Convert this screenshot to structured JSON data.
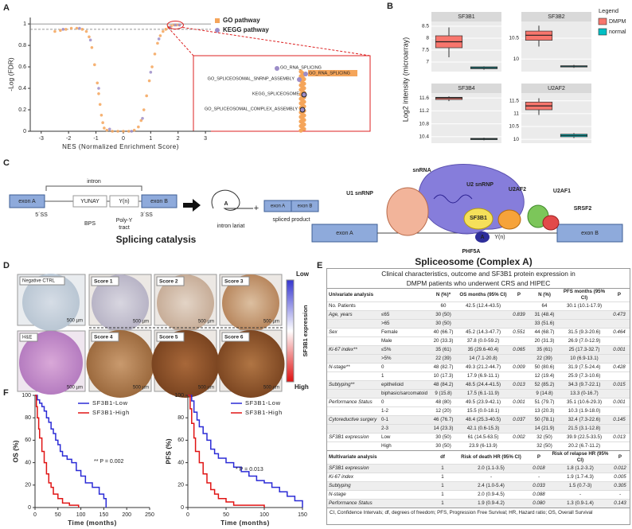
{
  "panel_labels": [
    "A",
    "B",
    "C",
    "D",
    "E",
    "F"
  ],
  "chart_data": [
    {
      "type": "scatter",
      "xlabel": "NES (Normalized Enrichment Score)",
      "ylabel": "-Log (FDR)",
      "xlim": [
        -3.4,
        3.2
      ],
      "xticks": [
        -3,
        -2,
        -1,
        0,
        1,
        2,
        3
      ],
      "ylim": [
        0,
        1.06
      ],
      "yticks": [
        0,
        0.2,
        0.4,
        0.6,
        0.8,
        1
      ],
      "reference_lines": [
        {
          "value": 1,
          "style": "solid"
        },
        {
          "value": 0.95,
          "style": "dashed"
        }
      ],
      "series": [
        {
          "name": "GO pathway",
          "color": "#f5a55a",
          "x": [
            -2.5,
            -2.3,
            -2.1,
            -1.9,
            -1.7,
            -1.5,
            -1.35,
            -1.25,
            -1.15,
            -1.05,
            -0.95,
            -0.9,
            -0.85,
            -0.8,
            -0.75,
            -0.7,
            -0.6,
            -0.4,
            -0.2,
            0,
            0.2,
            0.4,
            0.55,
            0.65,
            0.75,
            0.85,
            0.95,
            1.05,
            1.15,
            1.25,
            1.35,
            1.45,
            1.55,
            1.65,
            1.75,
            1.85,
            1.95,
            2.05
          ],
          "values": [
            0.93,
            0.94,
            0.95,
            0.96,
            0.96,
            0.95,
            0.93,
            0.88,
            0.78,
            0.62,
            0.45,
            0.35,
            0.25,
            0.15,
            0.08,
            0.03,
            0.01,
            0,
            0,
            0,
            0,
            0.01,
            0.04,
            0.1,
            0.2,
            0.33,
            0.47,
            0.6,
            0.72,
            0.82,
            0.89,
            0.93,
            0.95,
            0.97,
            0.98,
            0.99,
            0.99,
            0.99
          ]
        },
        {
          "name": "KEGG pathway",
          "color": "#9c8dc8",
          "x": [
            -2.2,
            -1.6,
            -1.2,
            -0.9,
            -0.5,
            0.3,
            0.7,
            1.0,
            1.3,
            1.7,
            1.9,
            2.05
          ],
          "values": [
            0.95,
            0.96,
            0.85,
            0.4,
            0.02,
            0,
            0.12,
            0.55,
            0.86,
            0.97,
            0.99,
            0.99
          ]
        }
      ],
      "annotations": [
        "GO_RNA_SPLICING",
        "GO_RNA_SPLICING",
        "GO_SPLICEOSOMAL_SNRNP_ASSEMBLY",
        "KEGG_SPLICEOSOME",
        "GO_SPLICEOSOMAL_COMPLEX_ASSEMBLY"
      ]
    },
    {
      "type": "box",
      "ylabel": "Log2 intensity (microarray)",
      "legend_title": "Legend",
      "series": [
        {
          "name": "DMPM",
          "color": "#f8766d"
        },
        {
          "name": "normal",
          "color": "#00bfc4"
        }
      ],
      "facets": [
        {
          "title": "SF3B1",
          "ylim": [
            6.6,
            8.7
          ],
          "yticks": [
            7.0,
            7.5,
            8.0,
            8.5
          ],
          "values": [
            {
              "low": 7.2,
              "q1": 7.6,
              "median": 7.85,
              "q3": 8.1,
              "high": 8.45
            },
            {
              "low": 6.68,
              "q1": 6.72,
              "median": 6.76,
              "q3": 6.8,
              "high": 6.82
            }
          ]
        },
        {
          "title": "SF3B2",
          "ylim": [
            9.7,
            10.9
          ],
          "yticks": [
            10.0,
            10.5
          ],
          "values": [
            {
              "low": 10.3,
              "q1": 10.45,
              "median": 10.57,
              "q3": 10.67,
              "high": 10.8
            },
            {
              "low": 9.79,
              "q1": 9.81,
              "median": 9.83,
              "q3": 9.84,
              "high": 9.86
            }
          ]
        },
        {
          "title": "SF3B4",
          "ylim": [
            10.2,
            11.75
          ],
          "yticks": [
            10.4,
            10.8,
            11.2,
            11.6
          ],
          "values": [
            {
              "low": 11.5,
              "q1": 11.55,
              "median": 11.6,
              "q3": 11.62,
              "high": 11.65
            },
            {
              "low": 10.29,
              "q1": 10.31,
              "median": 10.33,
              "q3": 10.35,
              "high": 10.37
            }
          ]
        },
        {
          "title": "U2AF2",
          "ylim": [
            9.85,
            11.8
          ],
          "yticks": [
            10.0,
            10.5,
            11.0,
            11.5
          ],
          "values": [
            {
              "low": 10.95,
              "q1": 11.15,
              "median": 11.3,
              "q3": 11.45,
              "high": 11.6
            },
            {
              "low": 10.05,
              "q1": 10.1,
              "median": 10.15,
              "q3": 10.2,
              "high": 10.24
            }
          ]
        }
      ]
    },
    {
      "type": "line",
      "step": true,
      "xlabel": "Time (months)",
      "ylabel": "OS (%)",
      "annotation": "** P = 0.002",
      "xlim": [
        0,
        250
      ],
      "xticks": [
        0,
        50,
        100,
        150,
        200,
        250
      ],
      "ylim": [
        0,
        100
      ],
      "yticks": [
        0,
        20,
        40,
        60,
        80,
        100
      ],
      "series": [
        {
          "name": "SF3B1-Low",
          "color": "#2b2bd6",
          "x": [
            0,
            5,
            10,
            15,
            20,
            25,
            30,
            35,
            40,
            45,
            50,
            55,
            60,
            70,
            80,
            90,
            100,
            110,
            125,
            140,
            150,
            155
          ],
          "values": [
            100,
            96,
            93,
            90,
            86,
            80,
            76,
            70,
            66,
            60,
            56,
            50,
            46,
            43,
            40,
            33,
            28,
            22,
            18,
            12,
            8,
            0
          ]
        },
        {
          "name": "SF3B1-High",
          "color": "#e01414",
          "x": [
            0,
            3,
            5,
            8,
            10,
            15,
            20,
            25,
            30,
            35,
            40,
            50,
            60,
            75,
            95
          ],
          "values": [
            100,
            90,
            80,
            70,
            62,
            50,
            40,
            30,
            22,
            18,
            12,
            8,
            4,
            2,
            0
          ]
        }
      ]
    },
    {
      "type": "line",
      "step": true,
      "xlabel": "Time (months)",
      "ylabel": "PFS (%)",
      "annotation": "* P = 0.013",
      "xlim": [
        0,
        150
      ],
      "xticks": [
        0,
        50,
        100,
        150
      ],
      "ylim": [
        0,
        100
      ],
      "yticks": [
        0,
        20,
        40,
        60,
        80,
        100
      ],
      "series": [
        {
          "name": "SF3B1-Low",
          "color": "#2b2bd6",
          "x": [
            0,
            5,
            8,
            12,
            15,
            20,
            25,
            30,
            35,
            40,
            50,
            60,
            70,
            80,
            90,
            100,
            110,
            120,
            130,
            140,
            150
          ],
          "values": [
            100,
            95,
            85,
            78,
            72,
            66,
            60,
            52,
            48,
            44,
            40,
            36,
            32,
            28,
            24,
            22,
            18,
            14,
            10,
            6,
            0
          ]
        },
        {
          "name": "SF3B1-High",
          "color": "#e01414",
          "x": [
            0,
            3,
            5,
            8,
            10,
            15,
            20,
            25,
            30,
            35,
            40,
            50,
            60,
            100
          ],
          "values": [
            100,
            88,
            75,
            62,
            50,
            40,
            30,
            22,
            16,
            12,
            8,
            5,
            2,
            0
          ]
        }
      ]
    }
  ],
  "splicing_diagram": {
    "title": "Splicing catalysis",
    "exon_a": "exon A",
    "intron": "intron",
    "bps_motif": "YUNAY",
    "poly_y_motif": "Y(n)",
    "exon_b": "exon B",
    "ss5": "5´SS",
    "bps": "BPS",
    "poly_y": [
      "Poly-Y",
      "tract"
    ],
    "ss3": "3´SS",
    "branch_a": "A",
    "lariat": "intron lariat",
    "plus": "+",
    "product_exon_a": "exon A",
    "product_exon_b": "exon B",
    "product": "spliced product"
  },
  "spliceosome_diagram": {
    "title": "Spliceosome (Complex A)",
    "u1": "U1 snRNP",
    "snrna": "snRNA",
    "u2": "U2 snRNP",
    "u2af2": "U2AF2",
    "u2af1": "U2AF1",
    "sf3b1": "SF3B1",
    "srsf2": "SRSF2",
    "exon_a": "exon A",
    "exon_b": "exon B",
    "phf5a": "PHF5A",
    "branch_a": "A",
    "poly_y": "Y(n)"
  },
  "ihc_panel": {
    "negative": "Negative CTRL",
    "he": "H&E",
    "scores": [
      "Score 1",
      "Score 2",
      "Score 3",
      "Score 4",
      "Score 5",
      "Score 6"
    ],
    "scale_bar": "500 µm",
    "colorbar": {
      "low": "Low",
      "high": "High",
      "label": "SF3B1 expression"
    }
  },
  "table": {
    "title": [
      "Clinical characteristics, outcome and SF3B1 protein expression in",
      "DMPM patients who underwent CRS and HIPEC"
    ],
    "univariate": {
      "header": [
        "Univariate analysis",
        "N (%)*",
        "OS months (95% CI)",
        "P",
        "N (%)",
        "PFS months (95% CI)",
        "P"
      ],
      "rows": [
        [
          "No. Patients",
          null,
          "60",
          "42.5 (12.4-43.5)",
          null,
          "64",
          "30.1 (10.1-17.9)",
          null
        ],
        [
          "Age, years",
          "≤65",
          "30 (50)",
          null,
          "0.839",
          "31 (48.4)",
          null,
          "0.473"
        ],
        [
          null,
          ">65",
          "30 (50)",
          null,
          null,
          "33 (51.6)",
          null,
          null
        ],
        [
          "Sex",
          "Female",
          "40 (66.7)",
          "45.2 (14.3-47.7)",
          "0.551",
          "44 (68.7)",
          "31.5 (9.3-20.6)",
          "0.464"
        ],
        [
          null,
          "Male",
          "20 (33.3)",
          "37.8 (0.0-59.2)",
          null,
          "20 (31.3)",
          "26.9 (7.0-12.9)",
          null
        ],
        [
          "Ki-67 index**",
          "≤5%",
          "35 (61)",
          "35 (29.6-40.4)",
          "0.065",
          "35 (61)",
          "25 (17.3-32.7)",
          "0.001"
        ],
        [
          null,
          ">5%",
          "22 (39)",
          "14 (7.1-20.8)",
          null,
          "22 (39)",
          "10 (6.9-13.1)",
          null
        ],
        [
          "N-stage**",
          "0",
          "48 (82.7)",
          "49.3 (21.2-44.7)",
          "0.009",
          "50 (80.6)",
          "31.9 (7.5-24.4)",
          "0.428"
        ],
        [
          null,
          "1",
          "10 (17.3)",
          "17.9 (6.9-11.1)",
          null,
          "12 (19.4)",
          "25.9 (7.3-10.6)",
          null
        ],
        [
          "Subtyping**",
          "epithelioid",
          "48 (84.2)",
          "48.5 (24.4-41.5)",
          "0.013",
          "52 (85.2)",
          "34.3 (9.7-22.1)",
          "0.015"
        ],
        [
          null,
          "biphasic/sarcomatoid",
          "9 (15.8)",
          "17.5 (6.1-11.9)",
          null,
          "9 (14.8)",
          "13.3 (0-16.7)",
          null
        ],
        [
          "Performance Status",
          "0",
          "48 (80)",
          "49.5 (23.9-42.1)",
          "0.001",
          "51 (79.7)",
          "35.1 (10.6-29.3)",
          "0.001"
        ],
        [
          null,
          "1-2",
          "12 (20)",
          "15.5 (0.0-18.1)",
          null,
          "13 (20.3)",
          "10.3 (1.9-18.0)",
          null
        ],
        [
          "Cytoreductive surgery",
          "0-1",
          "46 (76.7)",
          "48.4 (25.3-40.5)",
          "0.037",
          "50 (78.1)",
          "32.4 (7.3-22.6)",
          "0.145"
        ],
        [
          null,
          "2-3",
          "14 (23.3)",
          "42.1 (0.6-15.3)",
          null,
          "14 (21.9)",
          "21.5 (3.1-12.8)",
          null
        ],
        [
          "SF3B1 expression",
          "Low",
          "30 (50)",
          "61 (14.5-63.5)",
          "0.002",
          "32 (50)",
          "39.9 (22.5-33.5)",
          "0.013"
        ],
        [
          null,
          "High",
          "30 (50)",
          "23.9 (6-13.9)",
          null,
          "32 (50)",
          "20.2 (6.7-11.2)",
          null
        ]
      ]
    },
    "multivariate": {
      "header": [
        "Multivariate analysis",
        "df",
        "Risk of death HR (95% CI)",
        "P",
        "Risk of relapse HR (95% CI)",
        "P"
      ],
      "rows": [
        [
          "SF3B1 expression",
          "1",
          "2.0 (1.1-3.5)",
          "0.018",
          "1.8 (1.2-3.2)",
          "0.012"
        ],
        [
          "Ki-67 index",
          "1",
          "-",
          "-",
          "1.9 (1.7-4.3)",
          "0.005"
        ],
        [
          "Subtyping",
          "1",
          "2.4 (1.0-5.4)",
          "0.033",
          "1.5 (0.7-3)",
          "0.305"
        ],
        [
          "N-stage",
          "1",
          "2.0 (0.9-4.5)",
          "0.088",
          "-",
          "-"
        ],
        [
          "Performance Status",
          "1",
          "1.9 (0.9-4.2)",
          "0.080",
          "1.3 (0.9-1.4)",
          "0.143"
        ]
      ]
    },
    "footnote": "CI, Confidence Intervals; df, degrees of freedom; PFS, Progression Free Survival; HR, Hazard ratio; OS, Overall Survival"
  }
}
